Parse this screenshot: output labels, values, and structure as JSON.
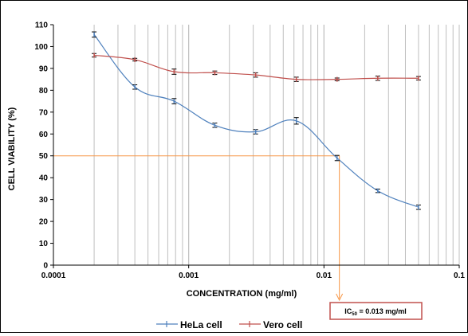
{
  "chart_data": {
    "type": "line",
    "title": "",
    "xlabel": "CONCENTRATION  (mg/ml)",
    "ylabel": "CELL VIABILITY (%)",
    "x_scale": "log",
    "xlim": [
      0.0001,
      0.1
    ],
    "ylim": [
      0,
      110
    ],
    "y_ticks": [
      "0",
      "10",
      "20",
      "30",
      "40",
      "50",
      "60",
      "70",
      "80",
      "90",
      "100",
      "110"
    ],
    "x_ticks": [
      "0.0001",
      "0.001",
      "0.01",
      "0.1"
    ],
    "grid": "vertical-log",
    "legend_position": "bottom",
    "x": [
      0.0002,
      0.0004,
      0.00078,
      0.00156,
      0.003125,
      0.00625,
      0.0125,
      0.025,
      0.05
    ],
    "series": [
      {
        "name": "HeLa cell",
        "color": "#4f81bd",
        "values": [
          105.5,
          81.5,
          75.0,
          64.0,
          61.0,
          66.0,
          49.0,
          34.0,
          26.5
        ],
        "errors": [
          1.2,
          1.0,
          1.2,
          1.0,
          1.0,
          1.5,
          1.2,
          0.8,
          1.0
        ]
      },
      {
        "name": "Vero cell",
        "color": "#c0504d",
        "values": [
          96.0,
          94.0,
          88.5,
          88.0,
          87.0,
          85.0,
          85.0,
          85.5,
          85.5
        ],
        "errors": [
          0.8,
          0.6,
          1.2,
          0.8,
          1.0,
          1.0,
          0.6,
          1.0,
          0.8
        ]
      }
    ],
    "annotation": {
      "ic50_prefix": "IC",
      "ic50_subscript": "50",
      "ic50_value_text": " = 0.013 mg/ml",
      "ic50_x": 0.013,
      "ic50_y": 50,
      "line_color": "#f79646",
      "box_border_color": "#c0504d"
    }
  }
}
